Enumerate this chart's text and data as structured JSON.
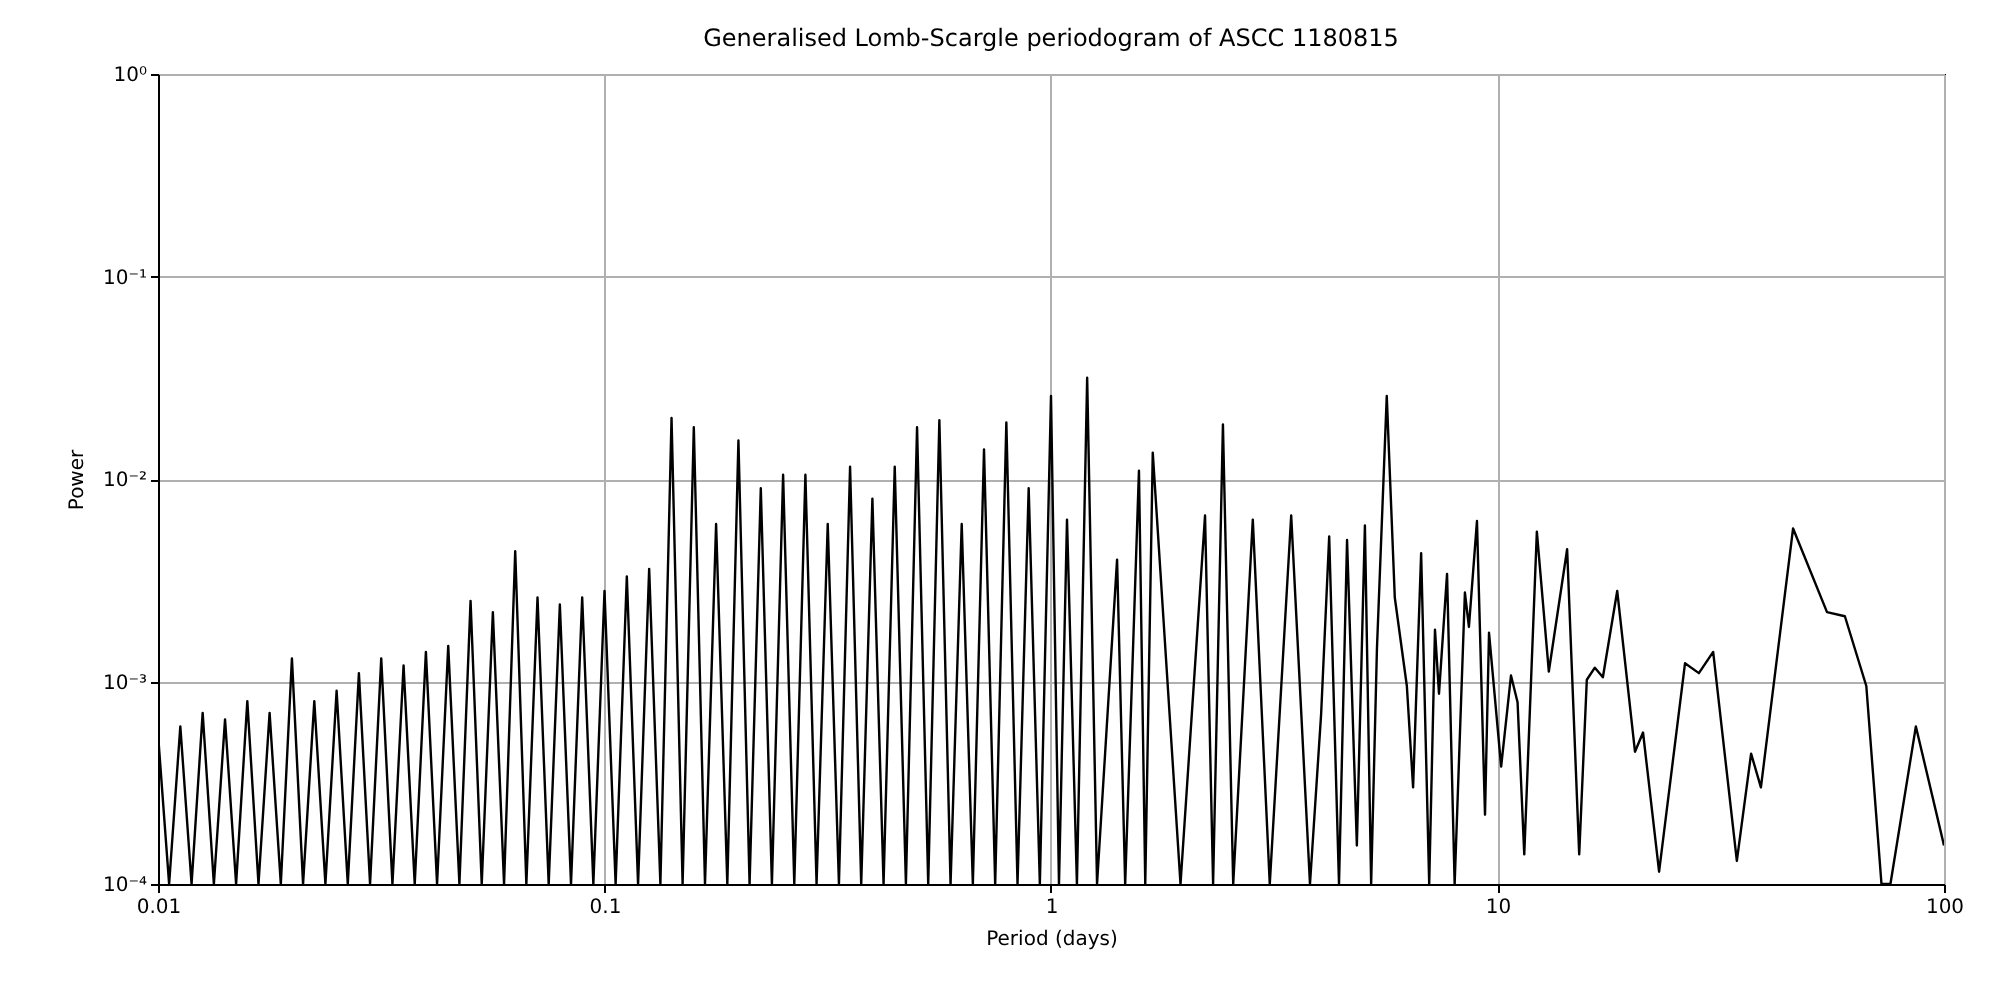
{
  "chart_data": {
    "type": "line",
    "title": "Generalised Lomb-Scargle periodogram of ASCC 1180815",
    "xlabel": "Period (days)",
    "ylabel": "Power",
    "x": [
      0.01,
      0.01059,
      0.01122,
      0.01189,
      0.01259,
      0.01334,
      0.01413,
      0.01496,
      0.01585,
      0.01679,
      0.01778,
      0.01884,
      0.01995,
      0.02113,
      0.02239,
      0.02371,
      0.02512,
      0.02661,
      0.02818,
      0.02985,
      0.03162,
      0.0335,
      0.03548,
      0.03758,
      0.03981,
      0.04217,
      0.04467,
      0.04732,
      0.05012,
      0.05309,
      0.05623,
      0.05957,
      0.0631,
      0.06683,
      0.07079,
      0.07499,
      0.07943,
      0.08414,
      0.08913,
      0.09441,
      0.1,
      0.1059,
      0.1122,
      0.1189,
      0.1259,
      0.1334,
      0.1413,
      0.1496,
      0.1585,
      0.1679,
      0.1778,
      0.1884,
      0.1995,
      0.2113,
      0.2239,
      0.2371,
      0.2512,
      0.2661,
      0.2818,
      0.2985,
      0.3162,
      0.335,
      0.3548,
      0.3758,
      0.3981,
      0.4217,
      0.4467,
      0.4732,
      0.5012,
      0.5309,
      0.5623,
      0.5957,
      0.631,
      0.6683,
      0.7079,
      0.7499,
      0.7943,
      0.8414,
      0.8913,
      0.9441,
      1,
      1.042,
      1.086,
      1.143,
      1.205,
      1.268,
      1.406,
      1.466,
      1.574,
      1.626,
      1.69,
      1.95,
      2.213,
      2.307,
      2.427,
      2.559,
      2.831,
      3.09,
      3.451,
      3.802,
      4.027,
      4.198,
      4.416,
      4.603,
      4.842,
      5.047,
      5.212,
      5.37,
      5.649,
      5.888,
      6.266,
      6.471,
      6.745,
      7.031,
      7.244,
      7.396,
      7.709,
      8.017,
      8.453,
      8.63,
      8.995,
      9.376,
      9.572,
      10.19,
      10.72,
      11.09,
      11.48,
      12.25,
      13.03,
      14.32,
      15.24,
      15.85,
      16.52,
      17.22,
      18.54,
      20.32,
      21.18,
      23.01,
      26.3,
      28.25,
      30.41,
      34.36,
      36.98,
      38.9,
      45.92,
      54.7,
      59.98,
      66.99,
      72.44,
      75.86,
      86.5,
      100
    ],
    "series": [
      {
        "color": "#000000",
        "values": [
          0.00055,
          0.0001,
          0.0006,
          0.0001,
          0.0007,
          0.0001,
          0.00065,
          0.0001,
          0.0008,
          0.0001,
          0.0007,
          0.0001,
          0.0013,
          0.0001,
          0.0008,
          0.0001,
          0.0009,
          0.0001,
          0.0011,
          0.0001,
          0.0013,
          0.0001,
          0.0012,
          0.0001,
          0.0014,
          0.0001,
          0.0015,
          0.0001,
          0.0025,
          0.0001,
          0.0022,
          0.0001,
          0.0044,
          0.0001,
          0.0026,
          0.0001,
          0.0024,
          0.0001,
          0.0026,
          0.0001,
          0.0028,
          0.0001,
          0.0033,
          0.0001,
          0.0036,
          0.0001,
          0.02,
          0.0001,
          0.018,
          0.0001,
          0.006,
          0.0001,
          0.0155,
          0.0001,
          0.009,
          0.0001,
          0.0105,
          0.0001,
          0.0105,
          0.0001,
          0.006,
          0.0001,
          0.0115,
          0.0001,
          0.008,
          0.0001,
          0.0115,
          0.0001,
          0.018,
          0.0001,
          0.0195,
          0.0001,
          0.006,
          0.0001,
          0.014,
          0.0001,
          0.019,
          0.0001,
          0.009,
          0.0001,
          0.0257,
          0.0001,
          0.0063,
          0.0001,
          0.0316,
          0.0001,
          0.004,
          0.0001,
          0.011,
          0.0001,
          0.0135,
          0.0001,
          0.0066,
          0.0001,
          0.0186,
          0.0001,
          0.0063,
          0.0001,
          0.0066,
          0.0001,
          0.00069,
          0.0052,
          0.0001,
          0.005,
          0.000155,
          0.0059,
          0.0001,
          0.00145,
          0.0257,
          0.0026,
          0.00095,
          0.0003,
          0.0043,
          0.0001,
          0.0018,
          0.00087,
          0.0034,
          0.0001,
          0.00275,
          0.00186,
          0.0062,
          0.00022,
          0.00174,
          0.00038,
          0.00107,
          0.00079,
          0.00014,
          0.0055,
          0.00112,
          0.0045,
          0.00014,
          0.00102,
          0.00117,
          0.00105,
          0.0028,
          0.00045,
          0.00056,
          0.000115,
          0.00123,
          0.0011,
          0.0014,
          0.00013,
          0.00044,
          0.0003,
          0.0057,
          0.0022,
          0.0021,
          0.00095,
          0.0001,
          0.0001,
          0.0006,
          0.000155
        ]
      }
    ],
    "xlim": [
      0.01,
      100
    ],
    "ylim": [
      0.0001,
      1
    ],
    "log": "xy",
    "grid": true,
    "xticks": [
      0.01,
      0.1,
      1,
      10,
      100
    ],
    "yticks": [
      {
        "value": 0.0001,
        "label": "10⁻⁴"
      },
      {
        "value": 0.001,
        "label": "10⁻³"
      },
      {
        "value": 0.01,
        "label": "10⁻²"
      },
      {
        "value": 0.1,
        "label": "10⁻¹"
      },
      {
        "value": 1,
        "label": "10⁰"
      }
    ]
  }
}
